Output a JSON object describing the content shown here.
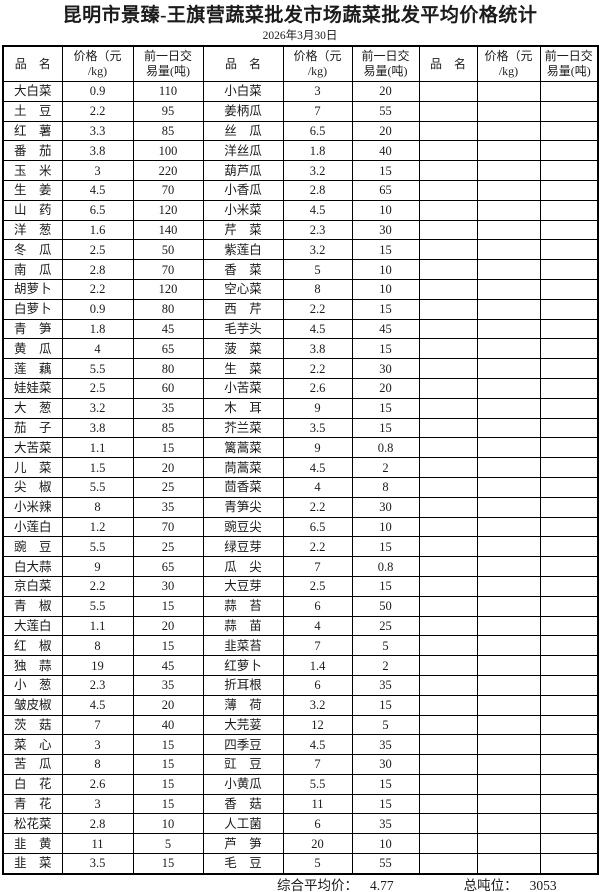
{
  "title": "昆明市景臻-王旗营蔬菜批发市场蔬菜批发平均价格统计",
  "date": "2026年3月30日",
  "header": {
    "name": "品　名",
    "price": "价格（元\n/kg)",
    "volume": "前一日交\n易量(吨)"
  },
  "table": {
    "row_count": 40,
    "left": [
      [
        "大白菜",
        "0.9",
        "110"
      ],
      [
        "土　豆",
        "2.2",
        "95"
      ],
      [
        "红　薯",
        "3.3",
        "85"
      ],
      [
        "番　茄",
        "3.8",
        "100"
      ],
      [
        "玉　米",
        "3",
        "220"
      ],
      [
        "生　姜",
        "4.5",
        "70"
      ],
      [
        "山　药",
        "6.5",
        "120"
      ],
      [
        "洋　葱",
        "1.6",
        "140"
      ],
      [
        "冬　瓜",
        "2.5",
        "50"
      ],
      [
        "南　瓜",
        "2.8",
        "70"
      ],
      [
        "胡萝卜",
        "2.2",
        "120"
      ],
      [
        "白萝卜",
        "0.9",
        "80"
      ],
      [
        "青　笋",
        "1.8",
        "45"
      ],
      [
        "黄　瓜",
        "4",
        "65"
      ],
      [
        "莲　藕",
        "5.5",
        "80"
      ],
      [
        "娃娃菜",
        "2.5",
        "60"
      ],
      [
        "大　葱",
        "3.2",
        "35"
      ],
      [
        "茄　子",
        "3.8",
        "85"
      ],
      [
        "大苦菜",
        "1.1",
        "15"
      ],
      [
        "儿　菜",
        "1.5",
        "20"
      ],
      [
        "尖　椒",
        "5.5",
        "25"
      ],
      [
        "小米辣",
        "8",
        "35"
      ],
      [
        "小莲白",
        "1.2",
        "70"
      ],
      [
        "豌　豆",
        "5.5",
        "25"
      ],
      [
        "白大蒜",
        "9",
        "65"
      ],
      [
        "京白菜",
        "2.2",
        "30"
      ],
      [
        "青　椒",
        "5.5",
        "15"
      ],
      [
        "大莲白",
        "1.1",
        "20"
      ],
      [
        "红　椒",
        "8",
        "15"
      ],
      [
        "独　蒜",
        "19",
        "45"
      ],
      [
        "小　葱",
        "2.3",
        "35"
      ],
      [
        "皱皮椒",
        "4.5",
        "20"
      ],
      [
        "茨　菇",
        "7",
        "40"
      ],
      [
        "菜　心",
        "3",
        "15"
      ],
      [
        "苦　瓜",
        "8",
        "15"
      ],
      [
        "白　花",
        "2.6",
        "15"
      ],
      [
        "青　花",
        "3",
        "15"
      ],
      [
        "松花菜",
        "2.8",
        "10"
      ],
      [
        "韭　黄",
        "11",
        "5"
      ],
      [
        "韭　菜",
        "3.5",
        "15"
      ]
    ],
    "middle": [
      [
        "小白菜",
        "3",
        "20"
      ],
      [
        "姜柄瓜",
        "7",
        "55"
      ],
      [
        "丝　瓜",
        "6.5",
        "20"
      ],
      [
        "洋丝瓜",
        "1.8",
        "40"
      ],
      [
        "葫芦瓜",
        "3.2",
        "15"
      ],
      [
        "小香瓜",
        "2.8",
        "65"
      ],
      [
        "小米菜",
        "4.5",
        "10"
      ],
      [
        "芹　菜",
        "2.3",
        "30"
      ],
      [
        "紫莲白",
        "3.2",
        "15"
      ],
      [
        "香　菜",
        "5",
        "10"
      ],
      [
        "空心菜",
        "8",
        "10"
      ],
      [
        "西　芹",
        "2.2",
        "15"
      ],
      [
        "毛芋头",
        "4.5",
        "45"
      ],
      [
        "菠　菜",
        "3.8",
        "15"
      ],
      [
        "生　菜",
        "2.2",
        "30"
      ],
      [
        "小苦菜",
        "2.6",
        "20"
      ],
      [
        "木　耳",
        "9",
        "15"
      ],
      [
        "芥兰菜",
        "3.5",
        "15"
      ],
      [
        "篱蒿菜",
        "9",
        "0.8"
      ],
      [
        "茼蒿菜",
        "4.5",
        "2"
      ],
      [
        "茴香菜",
        "4",
        "8"
      ],
      [
        "青笋尖",
        "2.2",
        "30"
      ],
      [
        "豌豆尖",
        "6.5",
        "10"
      ],
      [
        "绿豆芽",
        "2.2",
        "15"
      ],
      [
        "瓜　尖",
        "7",
        "0.8"
      ],
      [
        "大豆芽",
        "2.5",
        "15"
      ],
      [
        "蒜　苔",
        "6",
        "50"
      ],
      [
        "蒜　苗",
        "4",
        "25"
      ],
      [
        "韭菜苔",
        "7",
        "5"
      ],
      [
        "红萝卜",
        "1.4",
        "2"
      ],
      [
        "折耳根",
        "6",
        "35"
      ],
      [
        "薄　荷",
        "3.2",
        "15"
      ],
      [
        "大芫荽",
        "12",
        "5"
      ],
      [
        "四季豆",
        "4.5",
        "35"
      ],
      [
        "豇　豆",
        "7",
        "30"
      ],
      [
        "小黄瓜",
        "5.5",
        "15"
      ],
      [
        "香　菇",
        "11",
        "15"
      ],
      [
        "人工菌",
        "6",
        "35"
      ],
      [
        "芦　笋",
        "20",
        "10"
      ],
      [
        "毛　豆",
        "5",
        "55"
      ]
    ],
    "right": []
  },
  "footer": {
    "avg_label": "综合平均价：",
    "avg_value": "4.77",
    "total_label": "总吨位：",
    "total_value": "3053"
  }
}
